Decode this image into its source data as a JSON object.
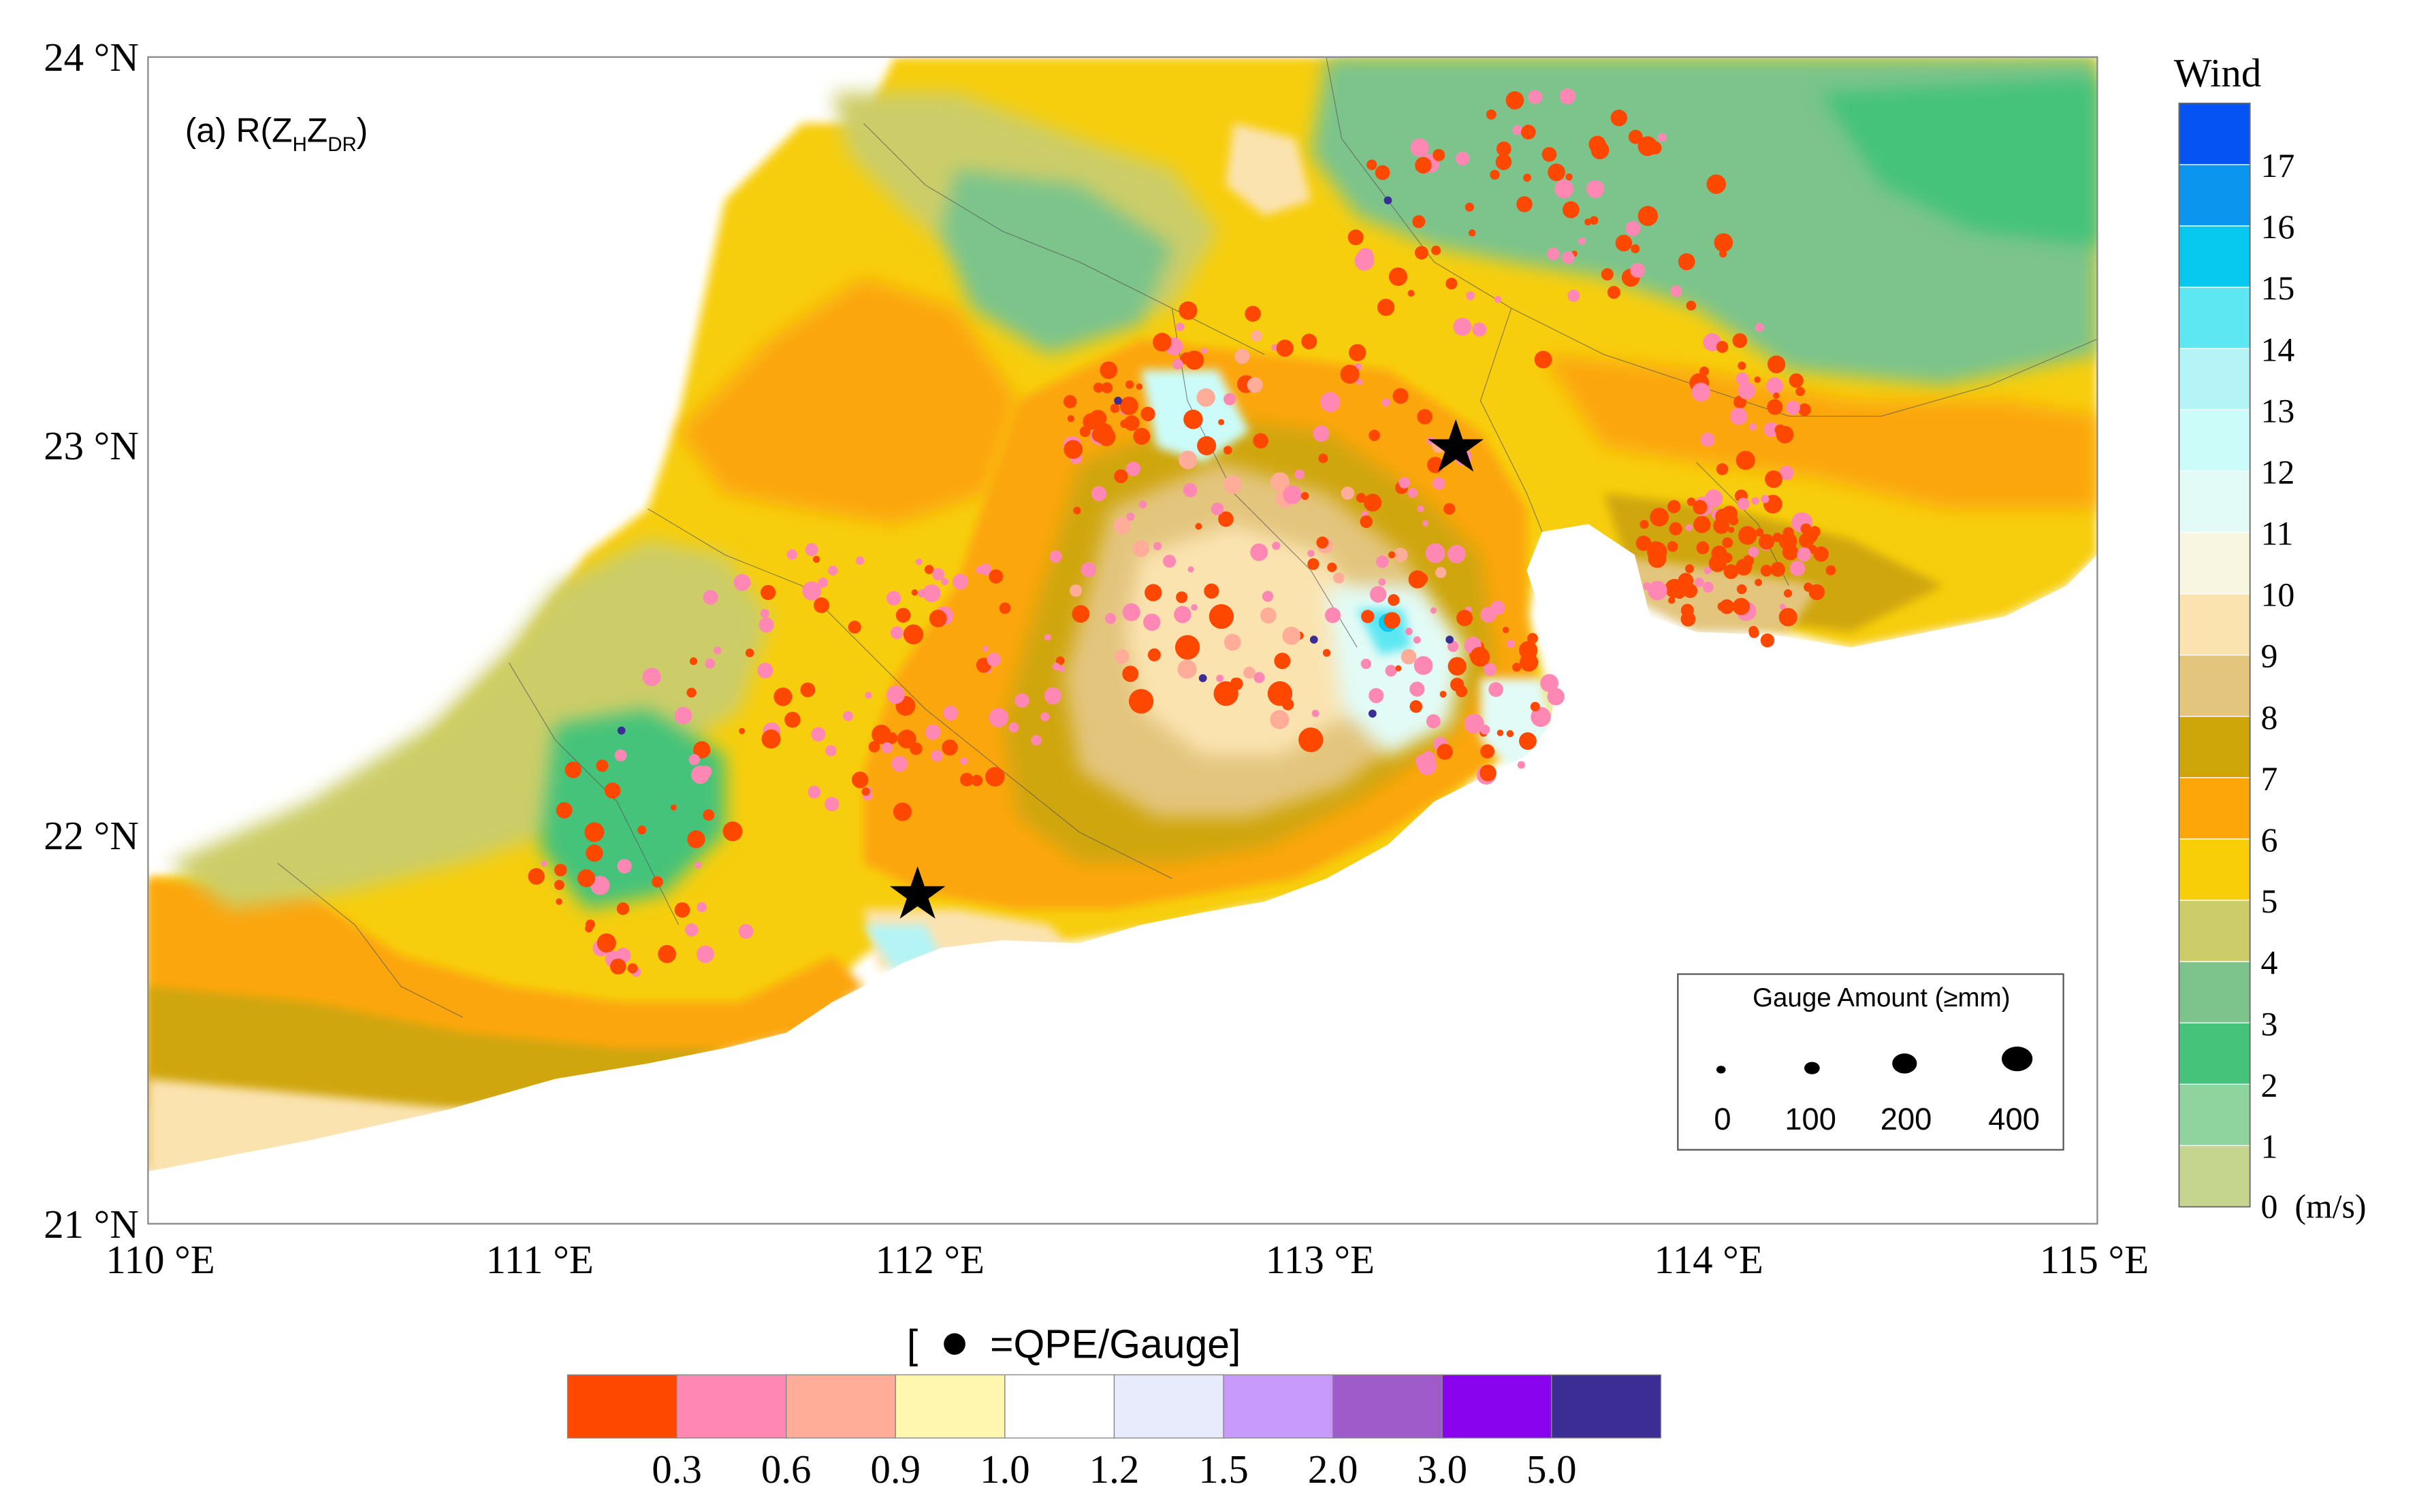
{
  "panel_label": {
    "prefix": "(a) R(Z",
    "sub1": "H",
    "mid": "Z",
    "sub2": "DR",
    "suffix": ")"
  },
  "axes": {
    "lat_ticks": [
      "24 °N",
      "23 °N",
      "22 °N",
      "21 °N"
    ],
    "lon_ticks": [
      "110 °E",
      "111 °E",
      "112 °E",
      "113 °E",
      "114 °E",
      "115 °E"
    ],
    "lon_range": [
      110,
      115
    ],
    "lat_range": [
      21,
      24
    ]
  },
  "wind_colorbar": {
    "title": "Wind",
    "unit": "(m/s)",
    "labels": [
      "0",
      "1",
      "2",
      "3",
      "4",
      "5",
      "6",
      "7",
      "8",
      "9",
      "10",
      "11",
      "12",
      "13",
      "14",
      "15",
      "16",
      "17"
    ],
    "colors": [
      "#c5d58e",
      "#8fd39f",
      "#45c37a",
      "#7cc48c",
      "#cccd68",
      "#f7ce08",
      "#fca60a",
      "#cfa609",
      "#e3c57e",
      "#fbe3b0",
      "#f8f6e1",
      "#e2fbf6",
      "#cbfcf9",
      "#b4f4f6",
      "#5de7f2",
      "#07c8ef",
      "#0b95ee",
      "#0553f3"
    ]
  },
  "ratio_colorbar": {
    "title_left": "[",
    "title_right": "=QPE/Gauge]",
    "labels": [
      "0.3",
      "0.6",
      "0.9",
      "1.0",
      "1.2",
      "1.5",
      "2.0",
      "3.0",
      "5.0"
    ],
    "colors": [
      "#fe4800",
      "#fe88b3",
      "#ffac98",
      "#fff6b0",
      "#ffffff",
      "#e8ebfc",
      "#c89afa",
      "#a05bcb",
      "#8a03ee",
      "#3c2d94"
    ]
  },
  "gauge_legend": {
    "title": "Gauge Amount (≥mm)",
    "labels": [
      "0",
      "100",
      "200",
      "400"
    ]
  },
  "markers": [
    {
      "name": "star-north",
      "lon": 113.36,
      "lat": 23.0
    },
    {
      "name": "star-south",
      "lon": 111.98,
      "lat": 21.84
    }
  ]
}
